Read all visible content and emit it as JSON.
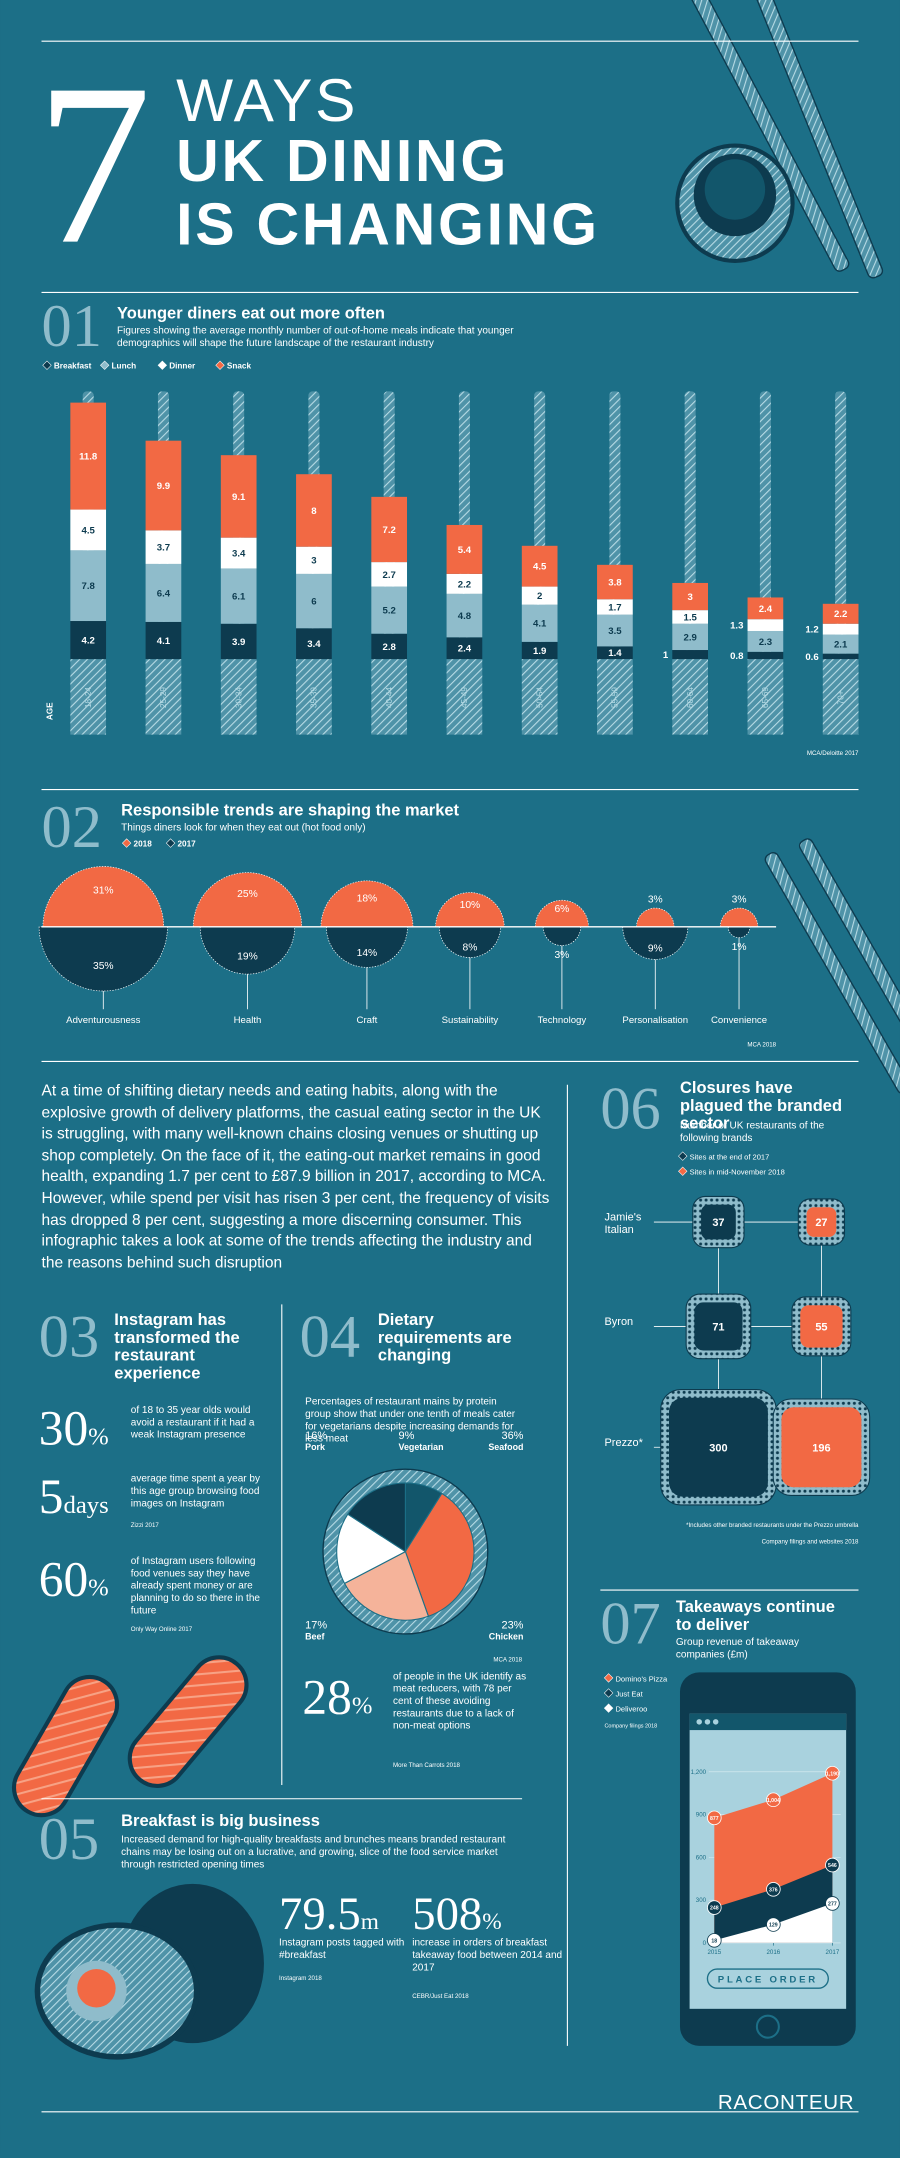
{
  "header": {
    "number": "7",
    "line1": "WAYS",
    "line2": "UK DINING",
    "line3": "IS CHANGING"
  },
  "intro": "At a time of shifting dietary needs and eating habits, along with the explosive growth of delivery platforms, the casual eating sector in the UK is struggling, with many well-known chains closing venues or shutting up shop completely. On the face of it, the eating-out market remains in good health, expanding 1.7 per cent to £87.9 billion in 2017, according to MCA. However, while spend per visit has risen 3 per cent, the frequency of visits has dropped 8 per cent, suggesting a more discerning consumer. This infographic takes a look at some of the trends affecting the industry and the reasons behind such disruption",
  "sections": [
    {
      "number": "01",
      "title": "Younger diners eat out more often",
      "subtitle": "Figures showing the average monthly number of out-of-home meals indicate that younger demographics will shape the future landscape of the restaurant industry",
      "source": "MCA/Deloitte 2017"
    },
    {
      "number": "02",
      "title": "Responsible trends are shaping the market",
      "subtitle": "Things diners look for when they eat out (hot food only)",
      "source": "MCA 2018"
    },
    {
      "number": "03",
      "title": "Instagram has transformed the restaurant experience",
      "stats": [
        {
          "value": 30,
          "unit": "%",
          "text": "of 18 to 35 year olds would avoid a restaurant if it had a weak Instagram presence"
        },
        {
          "value": 5,
          "unit": "days",
          "text": "average time spent a year by this age group browsing food images on Instagram",
          "source": "Zizzi 2017"
        },
        {
          "value": 60,
          "unit": "%",
          "text": "of Instagram users following food venues say they have already spent money or are planning to do so there in the future",
          "source": "Only Way Online 2017"
        }
      ]
    },
    {
      "number": "04",
      "title": "Dietary requirements are changing",
      "subtitle": "Percentages of restaurant mains by protein group show that under one tenth of meals cater for vegetarians despite increasing demands for less meat",
      "source": "MCA 2018",
      "stats": [
        {
          "value": 28,
          "unit": "%",
          "text": "of people in the UK identify as meat reducers, with 78 per cent of these avoiding restaurants due to a lack of non-meat options",
          "source": "More Than Carrots 2018"
        }
      ]
    },
    {
      "number": "05",
      "title": "Breakfast is big business",
      "subtitle": "Increased demand for high-quality breakfasts and brunches means branded restaurant chains may be losing out on a lucrative, and growing, slice of the food service market through restricted opening times",
      "stats": [
        {
          "value": 79.5,
          "unit": "m",
          "text": "Instagram posts tagged with #breakfast",
          "source": "Instagram 2018"
        },
        {
          "value": 508,
          "unit": "%",
          "text": "increase in orders of breakfast takeaway food between 2014 and 2017",
          "source": "CEBR/Just Eat 2018"
        }
      ]
    },
    {
      "number": "06",
      "title": "Closures have plagued the branded sector",
      "subtitle": "Number of UK restaurants of the following brands",
      "note": "*Includes other branded restaurants under the Prezzo umbrella",
      "source": "Company filings and websites 2018"
    },
    {
      "number": "07",
      "title": "Takeaways continue to deliver",
      "subtitle": "Group revenue of takeaway companies (£m)",
      "source": "Company filings 2018",
      "button": "PLACE ORDER"
    }
  ],
  "chart_data": [
    {
      "type": "bar",
      "stacked": true,
      "axis_label": "AGE",
      "categories": [
        "18-24",
        "25-29",
        "30-34",
        "35-39",
        "40-44",
        "45-49",
        "50-54",
        "55-59",
        "60-64",
        "65-69",
        "70+"
      ],
      "series": [
        {
          "name": "Breakfast",
          "color": "#0d3b4f",
          "values": [
            4.2,
            4.1,
            3.9,
            3.4,
            2.8,
            2.4,
            1.9,
            1.4,
            1,
            0.8,
            0.6
          ]
        },
        {
          "name": "Lunch",
          "color": "#8fbccb",
          "values": [
            7.8,
            6.4,
            6.1,
            6,
            5.2,
            4.8,
            4.1,
            3.5,
            2.9,
            2.3,
            2.1
          ]
        },
        {
          "name": "Dinner",
          "color": "#ffffff",
          "values": [
            4.5,
            3.7,
            3.4,
            3,
            2.7,
            2.2,
            2,
            1.7,
            1.5,
            1.3,
            1.2
          ]
        },
        {
          "name": "Snack",
          "color": "#f26944",
          "values": [
            11.8,
            9.9,
            9.1,
            8,
            7.2,
            5.4,
            4.5,
            3.8,
            3,
            2.4,
            2.2
          ]
        }
      ]
    },
    {
      "type": "semicircle",
      "categories": [
        "Adventurousness",
        "Health",
        "Craft",
        "Sustainability",
        "Technology",
        "Personalisation",
        "Convenience"
      ],
      "series": [
        {
          "name": "2018",
          "color": "#f26944",
          "values": [
            31,
            25,
            18,
            10,
            6,
            3,
            3
          ],
          "value_labels": [
            "31%",
            "25%",
            "18%",
            "10%",
            "6%",
            "3%",
            "3%"
          ]
        },
        {
          "name": "2017",
          "color": "#0d3b4f",
          "values": [
            35,
            19,
            14,
            8,
            3,
            9,
            1
          ],
          "value_labels": [
            "35%",
            "19%",
            "14%",
            "8%",
            "3%",
            "9%",
            "1%"
          ]
        }
      ]
    },
    {
      "type": "square",
      "categories": [
        "Jamie's Italian",
        "Byron",
        "Prezzo*"
      ],
      "series": [
        {
          "name": "Sites at the end of 2017",
          "color": "#0d3b4f",
          "values": [
            37,
            71,
            300
          ]
        },
        {
          "name": "Sites in mid-November 2018",
          "color": "#f26944",
          "values": [
            27,
            55,
            196
          ]
        }
      ]
    },
    {
      "type": "pie",
      "categories": [
        "Vegetarian",
        "Seafood",
        "Chicken",
        "Beef",
        "Pork"
      ],
      "values": [
        9,
        36,
        23,
        17,
        16
      ],
      "value_labels": [
        "9%",
        "36%",
        "23%",
        "17%",
        "16%"
      ],
      "colors": [
        "#12566b",
        "#f26944",
        "#f5b39a",
        "#ffffff",
        "#0d3b4f"
      ]
    },
    {
      "type": "area",
      "x": [
        2015,
        2016,
        2017
      ],
      "xlim": [
        2015,
        2017
      ],
      "xticks": [
        2015,
        2016,
        2017
      ],
      "ylim": [
        0,
        1300
      ],
      "yticks": [
        0,
        300,
        600,
        900,
        {
          "value": 1200,
          "label": "1,200"
        }
      ],
      "series": [
        {
          "name": "Domino's Pizza",
          "color": "#f26944",
          "values": [
            877,
            1004,
            1190
          ],
          "value_labels": [
            "877",
            "1,004",
            "1,190"
          ]
        },
        {
          "name": "Just Eat",
          "color": "#0d3b4f",
          "values": [
            248,
            376,
            546
          ]
        },
        {
          "name": "Deliveroo",
          "color": "#ffffff",
          "values": [
            18,
            129,
            277
          ]
        }
      ]
    }
  ],
  "footer": "RACONTEUR"
}
